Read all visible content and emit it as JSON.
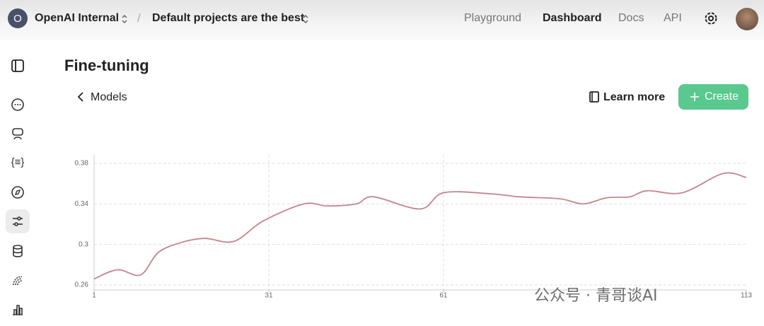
{
  "header": {
    "avatar_letter": "O",
    "org": "OpenAI Internal",
    "project": "Default projects are the best",
    "nav": [
      "Playground",
      "Dashboard",
      "Docs",
      "API"
    ]
  },
  "page": {
    "title": "Fine-tuning",
    "back": "Models",
    "learn_more": "Learn more",
    "create": "Create"
  },
  "watermark": "公众号 · 青哥谈AI",
  "chart_data": {
    "type": "line",
    "x": [
      1,
      5,
      9,
      12,
      16,
      20,
      25,
      30,
      37,
      41,
      46,
      49,
      57,
      61,
      69,
      74,
      81,
      85,
      89,
      93,
      96,
      102,
      109,
      113
    ],
    "series": [
      {
        "color": "#c4858e",
        "values": [
          0.266,
          0.275,
          0.27,
          0.292,
          0.302,
          0.306,
          0.303,
          0.323,
          0.34,
          0.338,
          0.34,
          0.347,
          0.335,
          0.351,
          0.35,
          0.347,
          0.345,
          0.34,
          0.346,
          0.347,
          0.353,
          0.351,
          0.37,
          0.366
        ]
      }
    ],
    "xlim": [
      1,
      113
    ],
    "ylim": [
      0.26,
      0.38
    ],
    "xticks": [
      1,
      31,
      61,
      113
    ],
    "yticks": [
      0.26,
      0.3,
      0.34,
      0.38
    ],
    "grid": true
  }
}
